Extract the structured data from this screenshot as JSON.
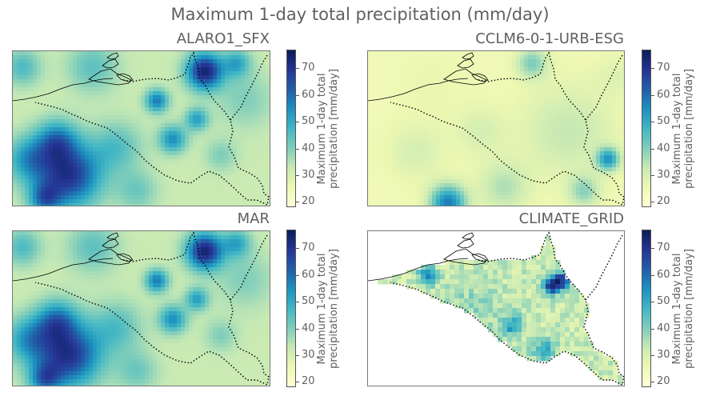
{
  "figure": {
    "title": "Maximum 1-day total precipitation (mm/day)"
  },
  "panels": [
    {
      "id": "alaro",
      "title": "ALARO1_SFX",
      "coverage": "full"
    },
    {
      "id": "cclm",
      "title": "CCLM6-0-1-URB-ESG",
      "coverage": "full"
    },
    {
      "id": "mar",
      "title": "MAR",
      "coverage": "full"
    },
    {
      "id": "climate",
      "title": "CLIMATE_GRID",
      "coverage": "country-only"
    }
  ],
  "colorbar": {
    "label": "Maximum 1-day total\nprecipitation [mm/day]",
    "ticks": [
      "70",
      "60",
      "50",
      "40",
      "30",
      "20"
    ],
    "range": [
      18,
      77
    ],
    "colormap": "YlGnBu",
    "colors": [
      "#ffffd9",
      "#edf8b1",
      "#c7e9b4",
      "#7fcdbb",
      "#41b6c4",
      "#1d91c0",
      "#225ea8",
      "#253494",
      "#081d58"
    ]
  }
}
